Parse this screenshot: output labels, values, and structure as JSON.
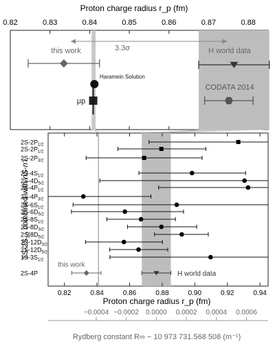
{
  "chart_data": [
    {
      "id": "top",
      "type": "scatter",
      "title": "",
      "xlabel": "Proton charge radius r_p (fm)",
      "xlim": [
        0.82,
        0.885
      ],
      "xticks": [
        0.82,
        0.83,
        0.84,
        0.85,
        0.86,
        0.87,
        0.88
      ],
      "sigma_label": "3.3σ",
      "points": [
        {
          "label": "this work",
          "value": 0.8335,
          "err": [
            0.8245,
            0.8425
          ],
          "marker": "diamond",
          "color": "#666666"
        },
        {
          "label": "H world data",
          "value": 0.8764,
          "err": [
            0.8675,
            0.8853
          ],
          "marker": "triangle-down",
          "color": "#333333"
        },
        {
          "label": "CODATA 2014",
          "value": 0.8751,
          "err": [
            0.869,
            0.8812
          ],
          "marker": "hexagon",
          "color": "#555555"
        },
        {
          "label": "Haramein Solution",
          "value": 0.8412,
          "err": null,
          "marker": "circle",
          "color": "#111111"
        },
        {
          "label": "μp",
          "value": 0.8409,
          "err": null,
          "marker": "square",
          "color": "#222222"
        }
      ],
      "band": [
        0.8405,
        0.8415
      ],
      "h_band": [
        0.8675,
        0.8853
      ]
    },
    {
      "id": "bottom",
      "type": "scatter",
      "ylabel": "1S-2S_{1/2} combined with nS-n'l",
      "xlabel": "Proton charge radius r_p (fm)",
      "xlim": [
        0.81,
        0.945
      ],
      "xticks": [
        0.82,
        0.84,
        0.86,
        0.88,
        0.9,
        0.92,
        0.94
      ],
      "band": [
        0.8675,
        0.8853
      ],
      "vline": 0.8409,
      "rows": [
        {
          "label": "2S-2P",
          "sub": "1/2",
          "value": 0.9267,
          "err": [
            0.8719,
            0.9452
          ],
          "marker": "square"
        },
        {
          "label": "2S-2P",
          "sub": "1/2",
          "value": 0.8795,
          "err": [
            0.8528,
            0.9068
          ],
          "marker": "square"
        },
        {
          "label": "2S-2P",
          "sub": "3/2",
          "value": 0.8689,
          "err": [
            0.8333,
            0.9045
          ],
          "marker": "square"
        },
        {
          "label": "2S-4S",
          "sub": "1/2",
          "value": 0.8983,
          "err": [
            0.8657,
            0.9312
          ],
          "marker": "circle"
        },
        {
          "label": "2S-4D",
          "sub": "5/2",
          "value": 0.9305,
          "err": [
            0.8417,
            0.9452
          ],
          "marker": "circle"
        },
        {
          "label": "2S-4P",
          "sub": "1/2",
          "value": 0.9327,
          "err": [
            0.8778,
            0.9452
          ],
          "marker": "circle"
        },
        {
          "label": "2S-4P",
          "sub": "3/2",
          "value": 0.8316,
          "err": [
            0.81,
            0.8731
          ],
          "marker": "circle"
        },
        {
          "label": "2S-6S",
          "sub": "1/2",
          "value": 0.8889,
          "err": [
            0.8253,
            0.9452
          ],
          "marker": "circle"
        },
        {
          "label": "2S-6D",
          "sub": "5/2",
          "value": 0.8571,
          "err": [
            0.8243,
            0.8931
          ],
          "marker": "circle"
        },
        {
          "label": "2S-8S",
          "sub": "1/2",
          "value": 0.867,
          "err": [
            0.846,
            0.8881
          ],
          "marker": "circle"
        },
        {
          "label": "2S-8D",
          "sub": "3/2",
          "value": 0.8795,
          "err": [
            0.8587,
            0.9012
          ],
          "marker": "circle"
        },
        {
          "label": "2S-8D",
          "sub": "5/2",
          "value": 0.892,
          "err": [
            0.8753,
            0.9083
          ],
          "marker": "circle"
        },
        {
          "label": "2S-12D",
          "sub": "3/2",
          "value": 0.8565,
          "err": [
            0.833,
            0.8801
          ],
          "marker": "circle"
        },
        {
          "label": "2S-12D",
          "sub": "5/2",
          "value": 0.8655,
          "err": [
            0.8478,
            0.8834
          ],
          "marker": "circle"
        },
        {
          "label": "1S-3S",
          "sub": "1/2",
          "value": 0.9097,
          "err": [
            0.8479,
            0.9452
          ],
          "marker": "circle"
        },
        {
          "label": "2S-4P",
          "sub": "",
          "value": null,
          "err": null,
          "marker": "none"
        }
      ],
      "legend": [
        {
          "label": "this work",
          "value": 0.8335,
          "err": [
            0.8245,
            0.8425
          ],
          "marker": "diamond"
        },
        {
          "label": "H world data",
          "value": 0.8764,
          "err": [
            0.8675,
            0.8853
          ],
          "marker": "triangle-down"
        }
      ]
    },
    {
      "id": "axis2",
      "type": "axis",
      "xlabel": "Rydberg constant R∞ − 10 973 731.568 508 (m⁻¹)",
      "ticks": [
        "−0.0004",
        "−0.0002",
        "0.0000",
        "0.0002",
        "0.0004",
        "0.0006"
      ],
      "tick_values": [
        -0.0004,
        -0.0002,
        0.0,
        0.0002,
        0.0004,
        0.0006
      ],
      "zero_at_rp": 0.8764,
      "scale_rp_per_unit": 92.2
    }
  ],
  "colors": {
    "band": "#bdbdbd",
    "axis": "#222222",
    "muted": "#999999"
  }
}
